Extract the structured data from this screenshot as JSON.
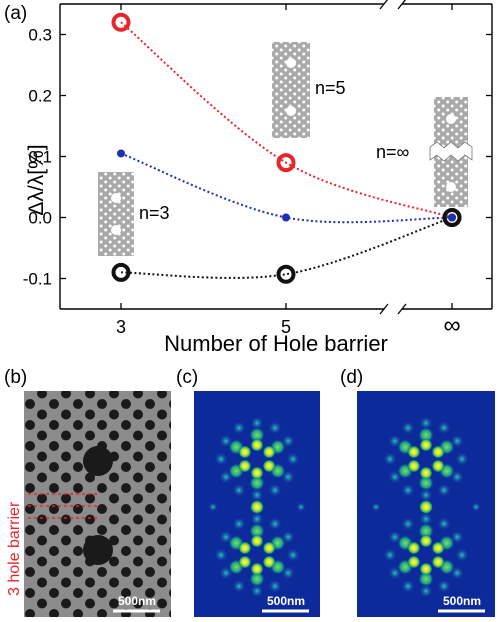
{
  "panel_labels": {
    "a": "(a)",
    "b": "(b)",
    "c": "(c)",
    "d": "(d)"
  },
  "annotations": {
    "n5": "n=5",
    "n3": "n=3",
    "ninf": "n=∞",
    "hole_barrier": "3 hole barrier"
  },
  "scalebars": {
    "b": "500nm",
    "c": "500nm",
    "d": "500nm"
  },
  "colors": {
    "red": "#e8252b",
    "blue": "#1f2fb3",
    "black": "#111111",
    "sem_gray": "#8c8c8c",
    "field_bg": "#0c2a9a",
    "inset_gray": "#a9a9a9"
  },
  "chart_data": {
    "type": "scatter",
    "title": "",
    "xlabel": "Number of Hole barrier",
    "ylabel": "Δλ/λ[%]",
    "categories": [
      "3",
      "5",
      "∞"
    ],
    "ylim": [
      -0.15,
      0.35
    ],
    "yticks": [
      "-0.1",
      "0.0",
      "0.1",
      "0.2",
      "0.3"
    ],
    "yticks_values": [
      -0.1,
      0.0,
      0.1,
      0.2,
      0.3
    ],
    "x_axis_break": true,
    "series": [
      {
        "color": "#e8252b",
        "marker": "open-circle-large",
        "values": [
          0.32,
          0.09,
          0.0
        ]
      },
      {
        "color": "#1f2fb3",
        "marker": "filled-dot",
        "values": [
          0.105,
          0.0,
          0.0
        ]
      },
      {
        "color": "#111111",
        "marker": "open-circle-large",
        "values": [
          -0.09,
          -0.093,
          0.0
        ]
      }
    ]
  }
}
